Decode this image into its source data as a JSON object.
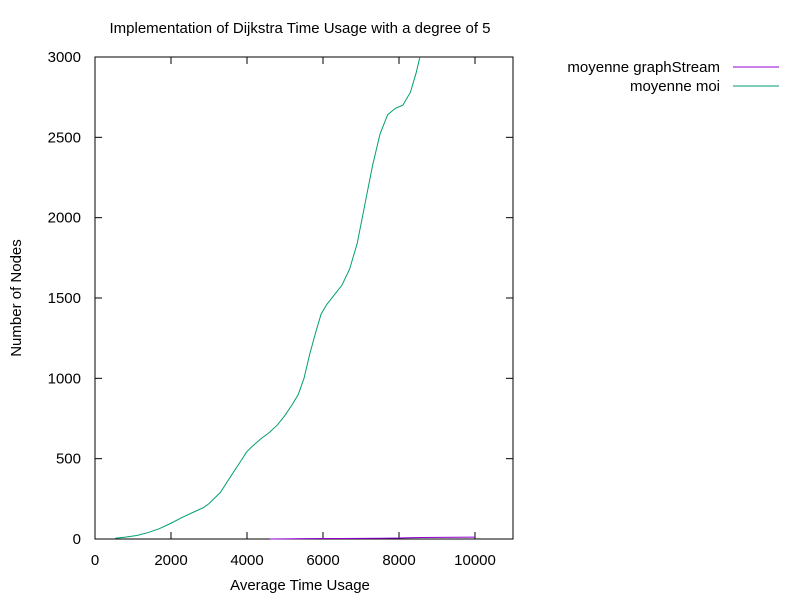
{
  "chart_data": {
    "type": "line",
    "title": "Implementation of Dijkstra Time Usage with a degree of 5",
    "xlabel": "Average Time Usage",
    "ylabel": "Number of Nodes",
    "xlim": [
      0,
      11000
    ],
    "ylim": [
      0,
      3000
    ],
    "xticks": [
      0,
      2000,
      4000,
      6000,
      8000,
      10000
    ],
    "yticks": [
      0,
      500,
      1000,
      1500,
      2000,
      2500,
      3000
    ],
    "grid": false,
    "legend_position": "top-right, outside plot",
    "series": [
      {
        "name": "moyenne graphStream",
        "color": "#9400d3",
        "points": [
          [
            4600,
            0
          ],
          [
            5000,
            1
          ],
          [
            5500,
            2
          ],
          [
            6000,
            3
          ],
          [
            6500,
            3
          ],
          [
            7000,
            4
          ],
          [
            7500,
            5
          ],
          [
            8000,
            6
          ],
          [
            8200,
            8
          ],
          [
            8600,
            9
          ],
          [
            9000,
            10
          ],
          [
            9500,
            11
          ],
          [
            10000,
            12
          ]
        ]
      },
      {
        "name": "moyenne moi",
        "color": "#009e73",
        "points": [
          [
            530,
            5
          ],
          [
            800,
            12
          ],
          [
            1100,
            22
          ],
          [
            1400,
            40
          ],
          [
            1700,
            65
          ],
          [
            2000,
            98
          ],
          [
            2300,
            135
          ],
          [
            2600,
            168
          ],
          [
            2850,
            195
          ],
          [
            3000,
            220
          ],
          [
            3300,
            290
          ],
          [
            3600,
            400
          ],
          [
            3850,
            490
          ],
          [
            4000,
            545
          ],
          [
            4200,
            590
          ],
          [
            4400,
            630
          ],
          [
            4600,
            665
          ],
          [
            4800,
            710
          ],
          [
            5000,
            770
          ],
          [
            5200,
            840
          ],
          [
            5350,
            900
          ],
          [
            5500,
            1000
          ],
          [
            5650,
            1150
          ],
          [
            5800,
            1280
          ],
          [
            5950,
            1400
          ],
          [
            6100,
            1460
          ],
          [
            6300,
            1520
          ],
          [
            6500,
            1580
          ],
          [
            6700,
            1680
          ],
          [
            6900,
            1840
          ],
          [
            7100,
            2080
          ],
          [
            7300,
            2320
          ],
          [
            7500,
            2520
          ],
          [
            7700,
            2640
          ],
          [
            7900,
            2680
          ],
          [
            8100,
            2700
          ],
          [
            8300,
            2780
          ],
          [
            8450,
            2900
          ],
          [
            8550,
            3000
          ]
        ]
      }
    ]
  }
}
